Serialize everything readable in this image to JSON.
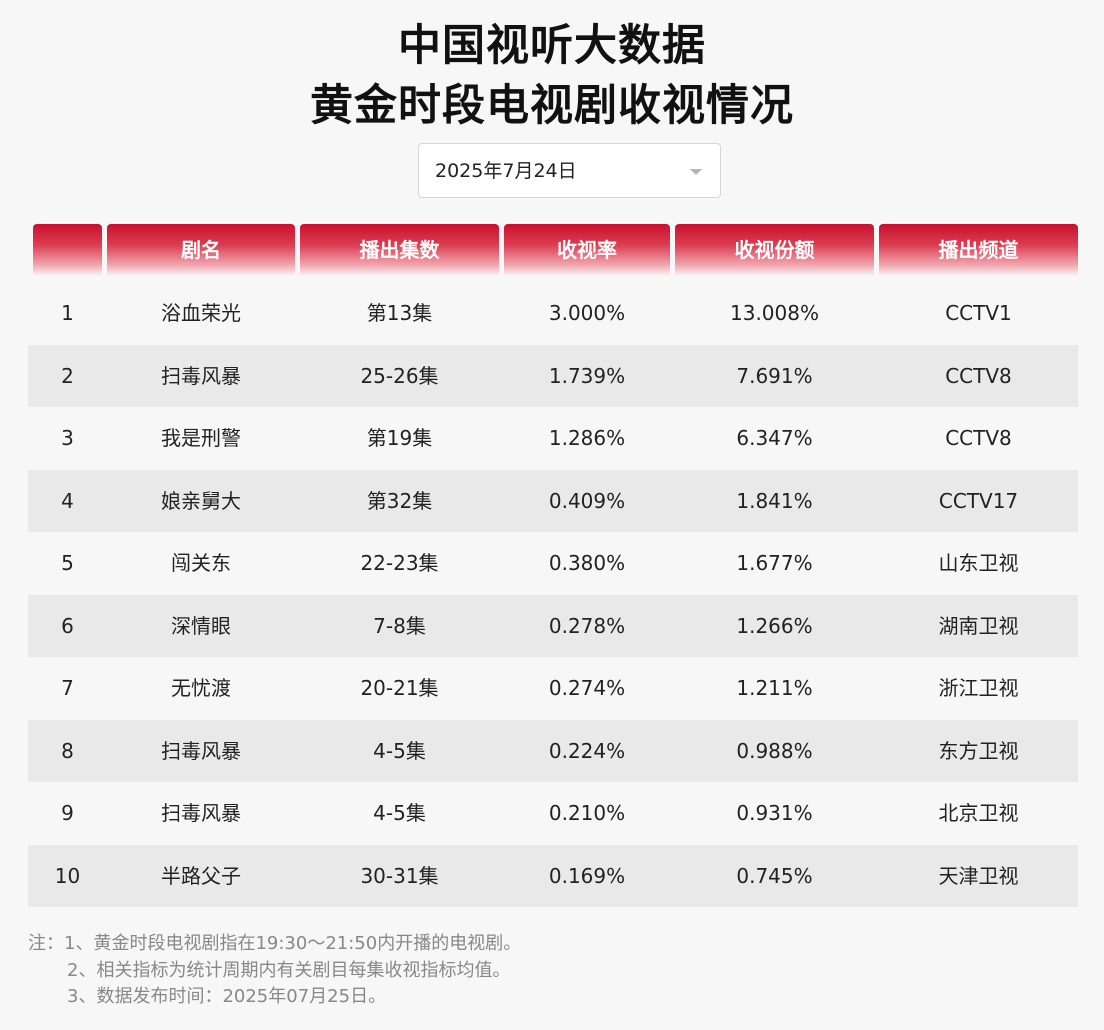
{
  "title": {
    "line1": "中国视听大数据",
    "line2": "黄金时段电视剧收视情况"
  },
  "date_selector": {
    "value": "2025年7月24日",
    "icon": "chevron-down-icon"
  },
  "table": {
    "columns": [
      "",
      "剧名",
      "播出集数",
      "收视率",
      "收视份额",
      "播出频道"
    ],
    "rows": [
      [
        "1",
        "浴血荣光",
        "第13集",
        "3.000%",
        "13.008%",
        "CCTV1"
      ],
      [
        "2",
        "扫毒风暴",
        "25-26集",
        "1.739%",
        "7.691%",
        "CCTV8"
      ],
      [
        "3",
        "我是刑警",
        "第19集",
        "1.286%",
        "6.347%",
        "CCTV8"
      ],
      [
        "4",
        "娘亲舅大",
        "第32集",
        "0.409%",
        "1.841%",
        "CCTV17"
      ],
      [
        "5",
        "闯关东",
        "22-23集",
        "0.380%",
        "1.677%",
        "山东卫视"
      ],
      [
        "6",
        "深情眼",
        "7-8集",
        "0.278%",
        "1.266%",
        "湖南卫视"
      ],
      [
        "7",
        "无忧渡",
        "20-21集",
        "0.274%",
        "1.211%",
        "浙江卫视"
      ],
      [
        "8",
        "扫毒风暴",
        "4-5集",
        "0.224%",
        "0.988%",
        "东方卫视"
      ],
      [
        "9",
        "扫毒风暴",
        "4-5集",
        "0.210%",
        "0.931%",
        "北京卫视"
      ],
      [
        "10",
        "半路父子",
        "30-31集",
        "0.169%",
        "0.745%",
        "天津卫视"
      ]
    ]
  },
  "notes": [
    "注：1、黄金时段电视剧指在19:30～21:50内开播的电视剧。",
    "2、相关指标为统计周期内有关剧目每集收视指标均值。",
    "3、数据发布时间：2025年07月25日。"
  ],
  "colors": {
    "header_red": "#c8102e",
    "row_stripe": "#e9e9e9",
    "background": "#f7f7f7",
    "note_text": "#888888"
  }
}
